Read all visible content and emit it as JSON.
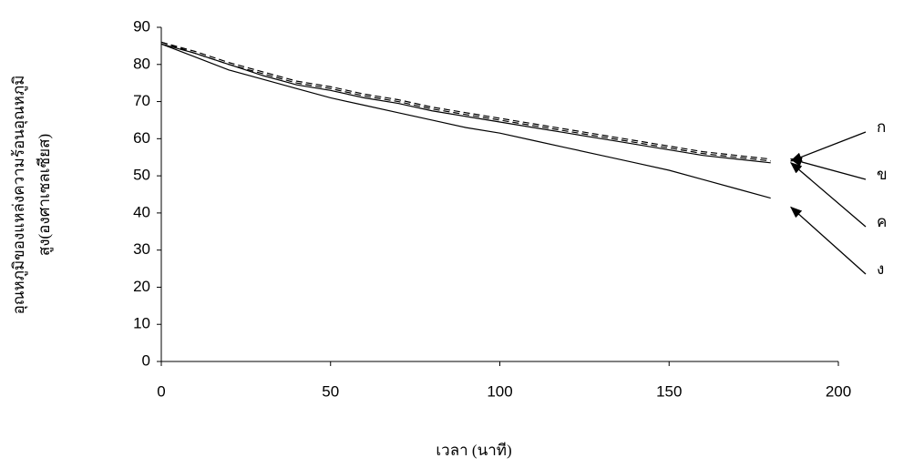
{
  "chart_data": {
    "type": "line",
    "x_label": "เวลา (นาที)",
    "y_label": [
      "อุณหภูมิของแหล่งความร้อนอุณหภูมิ",
      "สูง(องศาเซลเซียส)"
    ],
    "x": [
      0,
      10,
      20,
      30,
      40,
      50,
      60,
      70,
      80,
      90,
      100,
      110,
      120,
      130,
      140,
      150,
      160,
      170,
      180
    ],
    "series": [
      {
        "name": "ก",
        "color": "#000000",
        "dashed": true,
        "values": [
          86,
          83,
          80,
          77.5,
          75,
          73.5,
          71.5,
          70,
          68,
          66.5,
          65,
          63.5,
          62,
          60.5,
          59,
          57.5,
          56,
          55,
          54
        ]
      },
      {
        "name": "ข",
        "color": "#000000",
        "dashed": true,
        "values": [
          86,
          83.5,
          80.5,
          78,
          75.5,
          74,
          72,
          70.5,
          68.5,
          67,
          65.5,
          64,
          62.5,
          61,
          59.5,
          58,
          56.5,
          55.5,
          54.5
        ]
      },
      {
        "name": "ค",
        "color": "#000000",
        "dashed": false,
        "values": [
          85.5,
          83,
          80,
          77,
          74.5,
          73,
          71,
          69.5,
          67.5,
          66,
          64.5,
          63,
          61.5,
          60,
          58.5,
          57,
          55.5,
          54.5,
          53.5
        ]
      },
      {
        "name": "ง",
        "color": "#000000",
        "dashed": false,
        "values": [
          85.5,
          82,
          78.5,
          76,
          73.5,
          71,
          69,
          67,
          65,
          63,
          61.5,
          59.5,
          57.5,
          55.5,
          53.5,
          51.5,
          49,
          46.5,
          44
        ]
      }
    ],
    "xlim": [
      0,
      200
    ],
    "xticks": [
      0,
      50,
      100,
      150,
      200
    ],
    "ylim": [
      0,
      90
    ],
    "yticks": [
      0,
      10,
      20,
      30,
      40,
      50,
      60,
      70,
      80,
      90
    ],
    "grid": false
  }
}
